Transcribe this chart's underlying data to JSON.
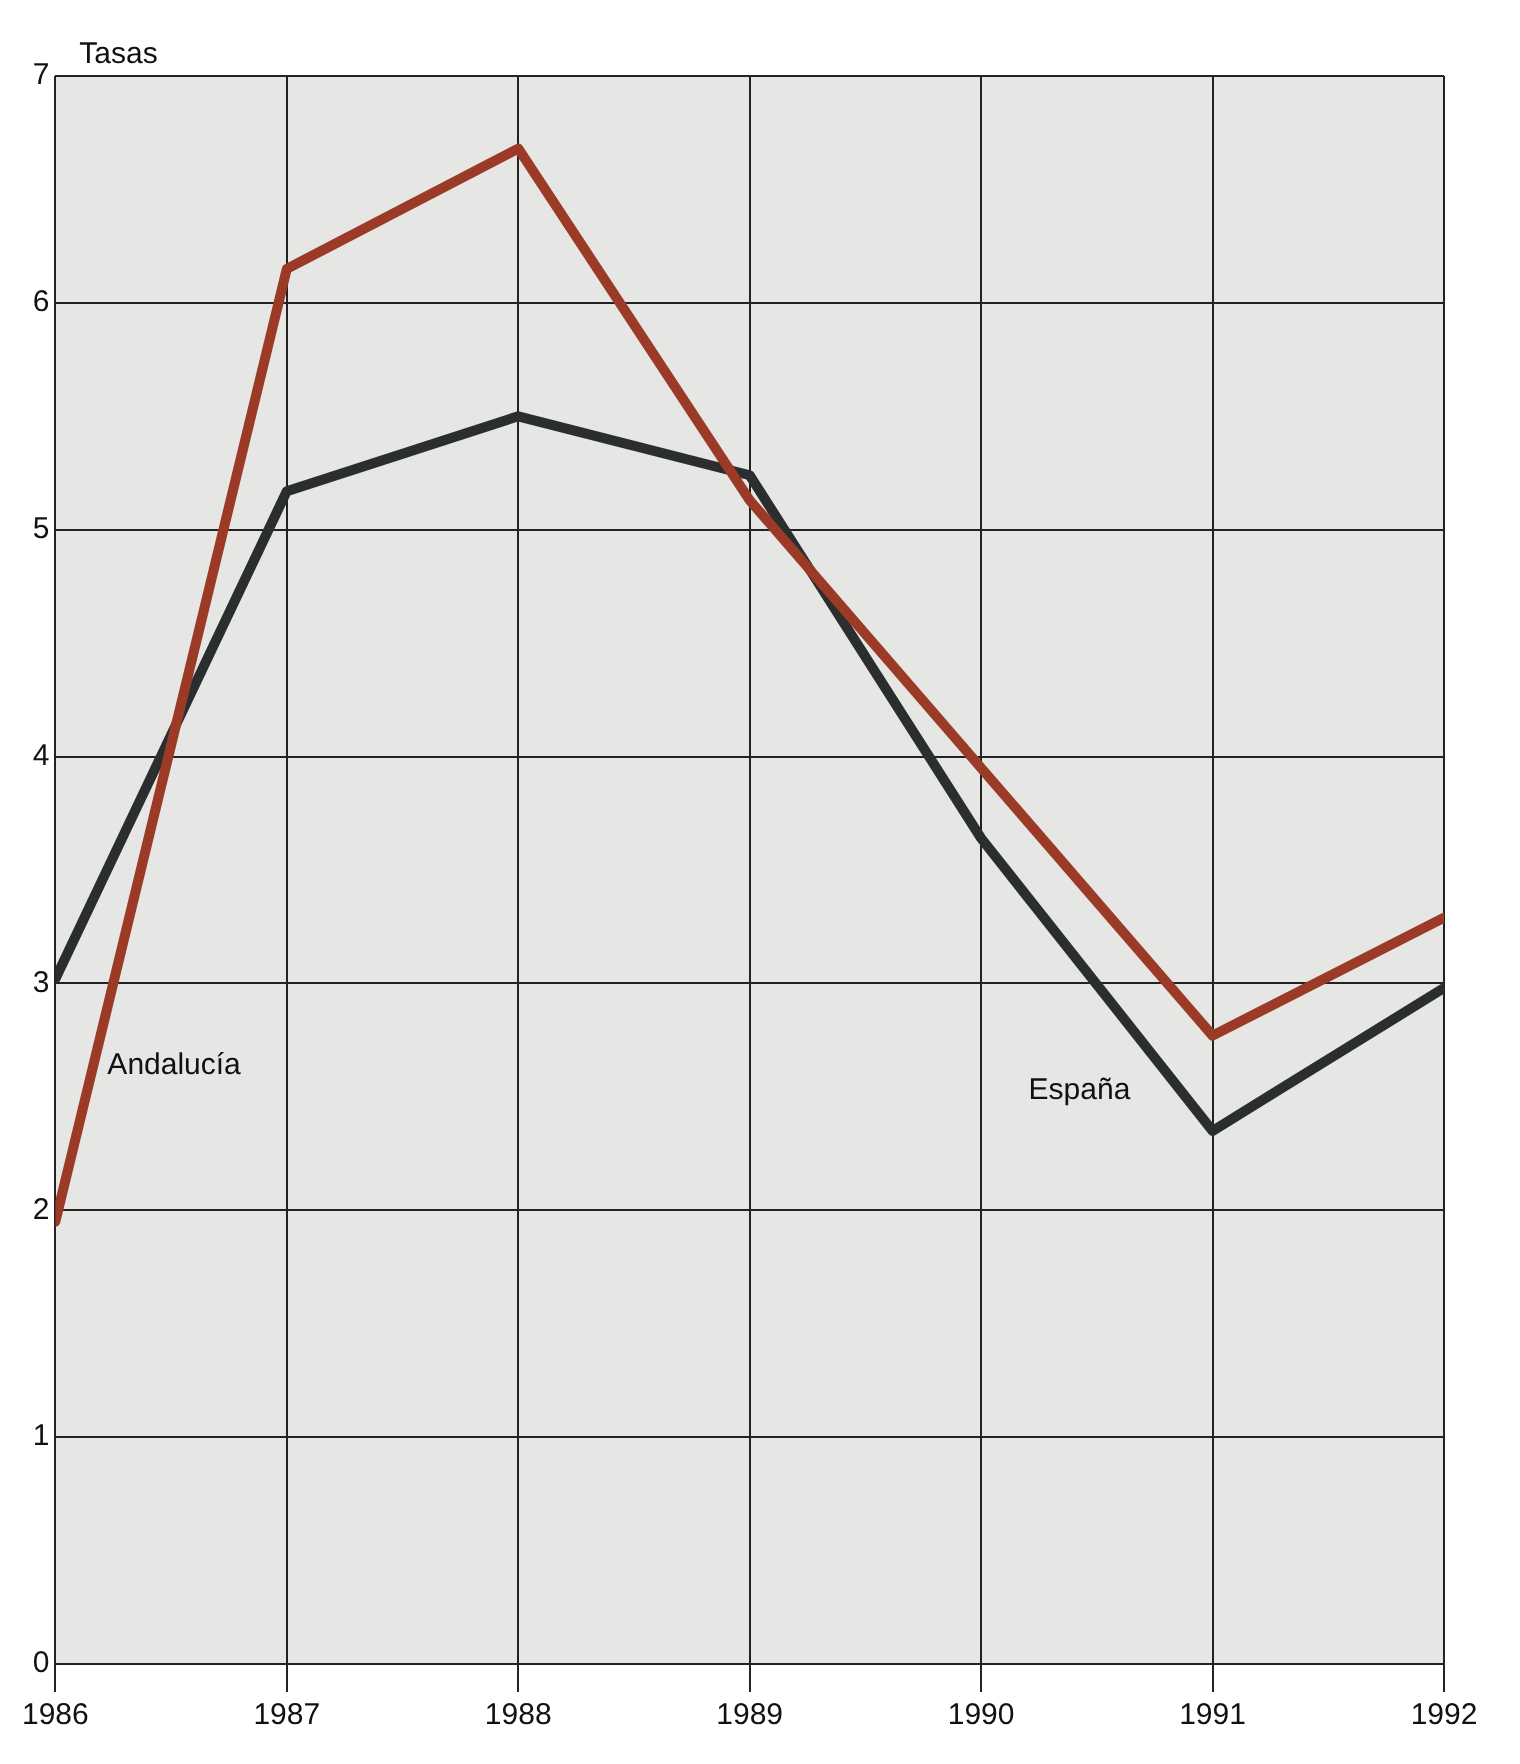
{
  "chart_data": {
    "type": "line",
    "ylabel": "Tasas",
    "x": [
      1986,
      1987,
      1988,
      1989,
      1990,
      1991,
      1992
    ],
    "series": [
      {
        "name": "Andalucía",
        "color": "#9b3a26",
        "values": [
          1.95,
          6.15,
          6.68,
          5.13,
          3.95,
          2.77,
          3.29
        ]
      },
      {
        "name": "España",
        "color": "#2a2e2e",
        "values": [
          3.02,
          5.17,
          5.5,
          5.24,
          3.64,
          2.35,
          2.98
        ]
      }
    ],
    "xlim": [
      1986,
      1992
    ],
    "xticks": [
      1986,
      1987,
      1988,
      1989,
      1990,
      1991,
      1992
    ],
    "ylim": [
      0,
      7
    ],
    "yticks": [
      0,
      1,
      2,
      3,
      4,
      5,
      6,
      7
    ],
    "grid": true,
    "legend": false,
    "marker": "none",
    "line_style": "solid"
  }
}
